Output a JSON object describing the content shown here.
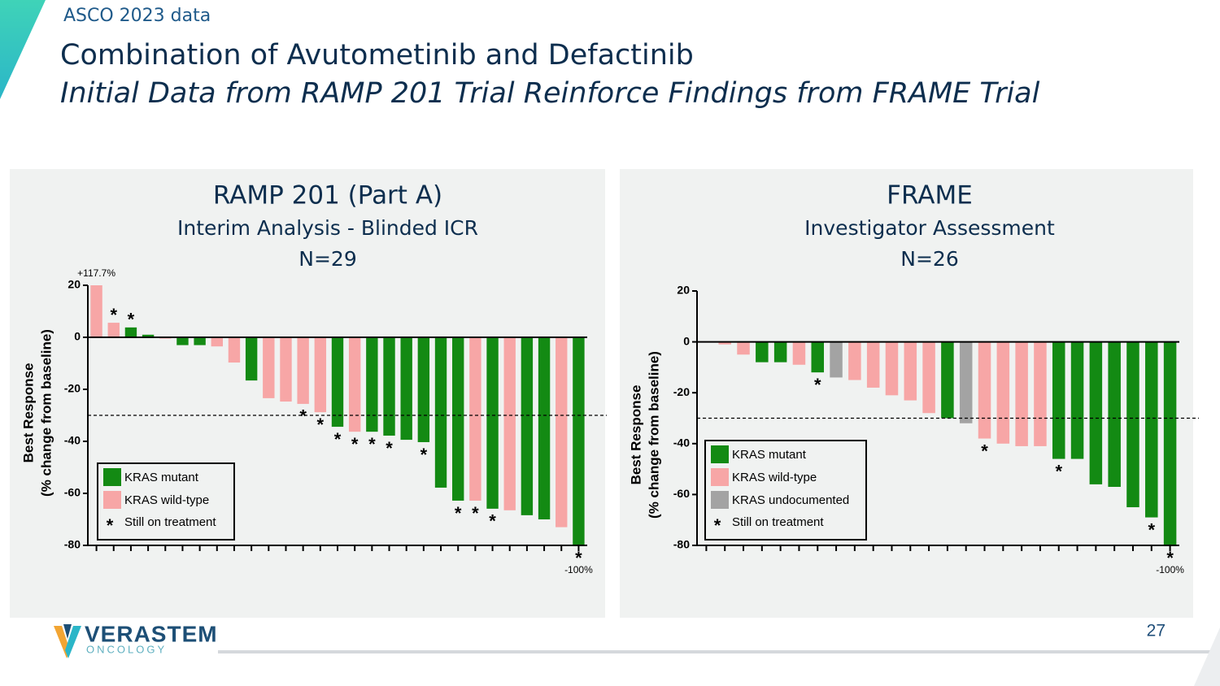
{
  "header": {
    "tag": "ASCO 2023 data",
    "title": "Combination of Avutometinib and Defactinib",
    "subtitle": "Initial Data from RAMP 201 Trial Reinforce Findings from FRAME Trial"
  },
  "chart_data": [
    {
      "type": "bar",
      "title": "RAMP 201 (Part A)",
      "subtitle": "Interim Analysis - Blinded ICR",
      "n_label": "N=29",
      "ylabel": [
        "Best Response",
        "(% change from baseline)"
      ],
      "ylim": [
        -80,
        20
      ],
      "yticks": [
        20,
        0,
        -20,
        -40,
        -60,
        -80
      ],
      "reference_line": -30,
      "legend": "lower left",
      "series": [
        {
          "name": "KRAS mutant",
          "color": "#138a13",
          "values": [
            null,
            null,
            3.8,
            1,
            null,
            -3,
            -3,
            null,
            null,
            -16.6,
            null,
            null,
            null,
            null,
            -34.4,
            null,
            -36.3,
            -37.8,
            -39.4,
            -40.3,
            -57.8,
            -62.8,
            null,
            -65.9,
            null,
            -68.4,
            -70,
            null,
            -100
          ],
          "value_labels": [
            null,
            null,
            null,
            null,
            null,
            null,
            null,
            null,
            null,
            null,
            null,
            null,
            null,
            null,
            null,
            null,
            null,
            null,
            null,
            null,
            null,
            null,
            null,
            null,
            null,
            null,
            null,
            null,
            "-100%"
          ]
        },
        {
          "name": "KRAS wild-type",
          "color": "#f7a6a6",
          "values": [
            117.7,
            5.6,
            null,
            null,
            -0.5,
            null,
            null,
            -3.5,
            -9.7,
            null,
            -23.4,
            -24.7,
            -25.6,
            -28.8,
            null,
            -36.3,
            null,
            null,
            null,
            null,
            null,
            null,
            -62.8,
            null,
            -66.5,
            null,
            null,
            -73,
            null
          ],
          "value_labels": [
            "+117.7%",
            null,
            null,
            null,
            null,
            null,
            null,
            null,
            null,
            null,
            null,
            null,
            null,
            null,
            null,
            null,
            null,
            null,
            null,
            null,
            null,
            null,
            null,
            null,
            null,
            null,
            null,
            null,
            null
          ]
        }
      ],
      "still_on_treatment": [
        false,
        true,
        true,
        false,
        false,
        false,
        false,
        false,
        false,
        false,
        false,
        false,
        true,
        true,
        true,
        true,
        true,
        true,
        false,
        true,
        false,
        true,
        true,
        true,
        false,
        false,
        false,
        false,
        true
      ],
      "marker": {
        "symbol": "*",
        "name": "Still on treatment"
      }
    },
    {
      "type": "bar",
      "title": "FRAME",
      "subtitle": "Investigator Assessment",
      "n_label": "N=26",
      "ylabel": [
        "Best  Response",
        "(% change from baseline)"
      ],
      "ylim": [
        -80,
        20
      ],
      "yticks": [
        20,
        0,
        -20,
        -40,
        -60,
        -80
      ],
      "reference_line": -30,
      "legend": "lower left",
      "series": [
        {
          "name": "KRAS mutant",
          "color": "#138a13",
          "values": [
            null,
            null,
            null,
            -8,
            -8,
            null,
            -12,
            null,
            null,
            null,
            null,
            null,
            null,
            -30,
            null,
            null,
            null,
            null,
            null,
            -46,
            -46,
            -56,
            -57,
            -65,
            -69,
            -100
          ],
          "value_labels": [
            null,
            null,
            null,
            null,
            null,
            null,
            null,
            null,
            null,
            null,
            null,
            null,
            null,
            null,
            null,
            null,
            null,
            null,
            null,
            null,
            null,
            null,
            null,
            null,
            null,
            "-100%"
          ]
        },
        {
          "name": "KRAS wild-type",
          "color": "#f7a6a6",
          "values": [
            0,
            -1,
            -5,
            null,
            null,
            -9,
            null,
            null,
            -15,
            -18,
            -21,
            -23,
            -28,
            null,
            null,
            -38,
            -40,
            -41,
            -41,
            null,
            null,
            null,
            null,
            null,
            null,
            null
          ]
        },
        {
          "name": "KRAS undocumented",
          "color": "#a3a3a3",
          "values": [
            null,
            null,
            null,
            null,
            null,
            null,
            null,
            -14,
            null,
            null,
            null,
            null,
            null,
            null,
            -32,
            null,
            null,
            null,
            null,
            null,
            null,
            null,
            null,
            null,
            null,
            null
          ]
        }
      ],
      "still_on_treatment": [
        false,
        false,
        false,
        false,
        false,
        false,
        true,
        false,
        false,
        false,
        false,
        false,
        false,
        false,
        false,
        true,
        false,
        false,
        false,
        true,
        false,
        false,
        false,
        false,
        true,
        true
      ],
      "marker": {
        "symbol": "*",
        "name": "Still on treatment"
      }
    }
  ],
  "footer": {
    "logo_name": "VERASTEM",
    "logo_sub": "ONCOLOGY",
    "page_number": "27"
  }
}
